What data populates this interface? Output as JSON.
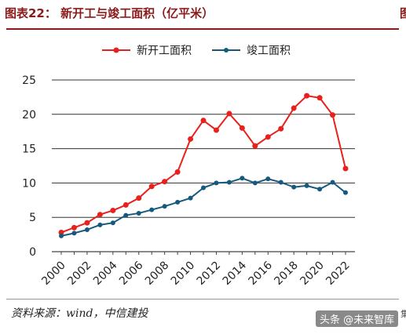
{
  "header": {
    "title": "图表22：   新开工与竣工面积（亿平米）",
    "right_fragment": "图"
  },
  "source_text": "资料来源：wind，中信建投",
  "watermark_text": "头条 @未来智库",
  "corner_text": "集",
  "colors": {
    "accent": "#8b1a1a",
    "series_new": "#e8211c",
    "series_done": "#155a7e",
    "grid": "#333333"
  },
  "chart_data": {
    "type": "line",
    "x": [
      2000,
      2001,
      2002,
      2003,
      2004,
      2005,
      2006,
      2007,
      2008,
      2009,
      2010,
      2011,
      2012,
      2013,
      2014,
      2015,
      2016,
      2017,
      2018,
      2019,
      2020,
      2021,
      2022
    ],
    "x_tick_labels": [
      "2000",
      "2002",
      "2004",
      "2006",
      "2008",
      "2010",
      "2012",
      "2014",
      "2016",
      "2018",
      "2020",
      "2022"
    ],
    "y_tick_labels": [
      "0",
      "5",
      "10",
      "15",
      "20",
      "25"
    ],
    "ylim": [
      0,
      25
    ],
    "grid": true,
    "legend_position": "top-center",
    "series": [
      {
        "name": "新开工面积",
        "color": "#e8211c",
        "values": [
          2.8,
          3.5,
          4.2,
          5.4,
          6.0,
          6.8,
          7.8,
          9.5,
          10.2,
          11.6,
          16.4,
          19.1,
          17.7,
          20.1,
          18.0,
          15.4,
          16.7,
          17.9,
          20.9,
          22.7,
          22.4,
          19.9,
          12.1
        ]
      },
      {
        "name": "竣工面积",
        "color": "#155a7e",
        "values": [
          2.3,
          2.7,
          3.2,
          3.9,
          4.2,
          5.3,
          5.6,
          6.1,
          6.6,
          7.2,
          7.8,
          9.3,
          10.0,
          10.1,
          10.7,
          10.0,
          10.6,
          10.1,
          9.4,
          9.6,
          9.1,
          10.1,
          8.6
        ]
      }
    ]
  }
}
